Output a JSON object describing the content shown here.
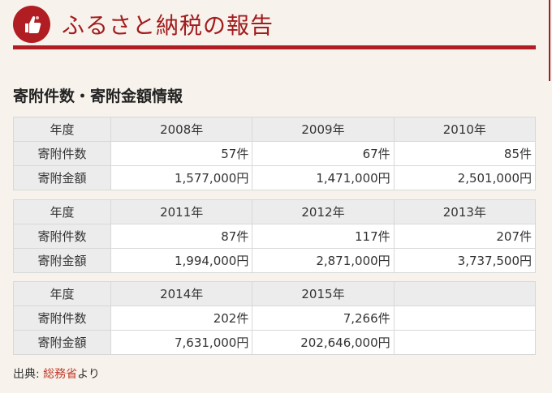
{
  "header": {
    "title": "ふるさと納税の報告"
  },
  "section": {
    "title": "寄附件数・寄附金額情報"
  },
  "tables": [
    {
      "year_label": "年度",
      "years": [
        "2008年",
        "2009年",
        "2010年"
      ],
      "rows": [
        {
          "label": "寄附件数",
          "values": [
            "57件",
            "67件",
            "85件"
          ]
        },
        {
          "label": "寄附金額",
          "values": [
            "1,577,000円",
            "1,471,000円",
            "2,501,000円"
          ]
        }
      ]
    },
    {
      "year_label": "年度",
      "years": [
        "2011年",
        "2012年",
        "2013年"
      ],
      "rows": [
        {
          "label": "寄附件数",
          "values": [
            "87件",
            "117件",
            "207件"
          ]
        },
        {
          "label": "寄附金額",
          "values": [
            "1,994,000円",
            "2,871,000円",
            "3,737,500円"
          ]
        }
      ]
    },
    {
      "year_label": "年度",
      "years": [
        "2014年",
        "2015年",
        ""
      ],
      "rows": [
        {
          "label": "寄附件数",
          "values": [
            "202件",
            "7,266件",
            ""
          ]
        },
        {
          "label": "寄附金額",
          "values": [
            "7,631,000円",
            "202,646,000円",
            ""
          ]
        }
      ]
    }
  ],
  "source": {
    "prefix": "出典: ",
    "link": "総務省",
    "suffix": "より"
  },
  "colors": {
    "accent": "#b01e23",
    "link": "#c0392b"
  },
  "icons": {
    "logo": "thumbs-up-hand-icon"
  }
}
